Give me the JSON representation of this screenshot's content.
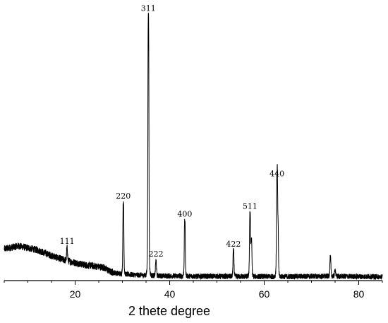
{
  "chart_data": {
    "type": "line",
    "title": "",
    "xlabel": "2 thete degree",
    "ylabel": "",
    "xlim": [
      5,
      85
    ],
    "ylim": [
      0,
      100
    ],
    "x_ticks": [
      20,
      40,
      60,
      80
    ],
    "grid": false,
    "legend": "none",
    "line_color": "#000000",
    "background": [
      [
        5,
        11.7
      ],
      [
        8,
        12.8
      ],
      [
        12,
        11.3
      ],
      [
        15,
        9.2
      ],
      [
        18,
        7.4
      ],
      [
        22,
        5.8
      ],
      [
        26,
        4.9
      ],
      [
        27.5,
        3.2
      ],
      [
        30,
        2.4
      ],
      [
        35,
        1.9
      ],
      [
        40,
        1.7
      ],
      [
        45,
        1.6
      ],
      [
        50,
        1.6
      ],
      [
        55,
        1.5
      ],
      [
        60,
        1.5
      ],
      [
        65,
        1.5
      ],
      [
        70,
        1.6
      ],
      [
        75,
        1.6
      ],
      [
        80,
        1.5
      ],
      [
        85,
        1.4
      ]
    ],
    "peaks": [
      {
        "label": "111",
        "x": 18.3,
        "y": 12.0
      },
      {
        "label": "220",
        "x": 30.2,
        "y": 28.7
      },
      {
        "label": "311",
        "x": 35.5,
        "y": 98.0
      },
      {
        "label": "222",
        "x": 37.1,
        "y": 7.3
      },
      {
        "label": "400",
        "x": 43.2,
        "y": 22.0
      },
      {
        "label": "422",
        "x": 53.5,
        "y": 11.0
      },
      {
        "label": "511",
        "x": 57.0,
        "y": 25.0
      },
      {
        "label": "440",
        "x": 62.7,
        "y": 37.0
      }
    ],
    "extra_peaks": [
      {
        "x": 57.3,
        "y": 14.5
      },
      {
        "x": 62.9,
        "y": 20.0
      },
      {
        "x": 74.0,
        "y": 8.5
      },
      {
        "x": 75.0,
        "y": 4.0
      }
    ],
    "noise_amplitude": 1.1,
    "peak_fwhm": 0.25
  }
}
